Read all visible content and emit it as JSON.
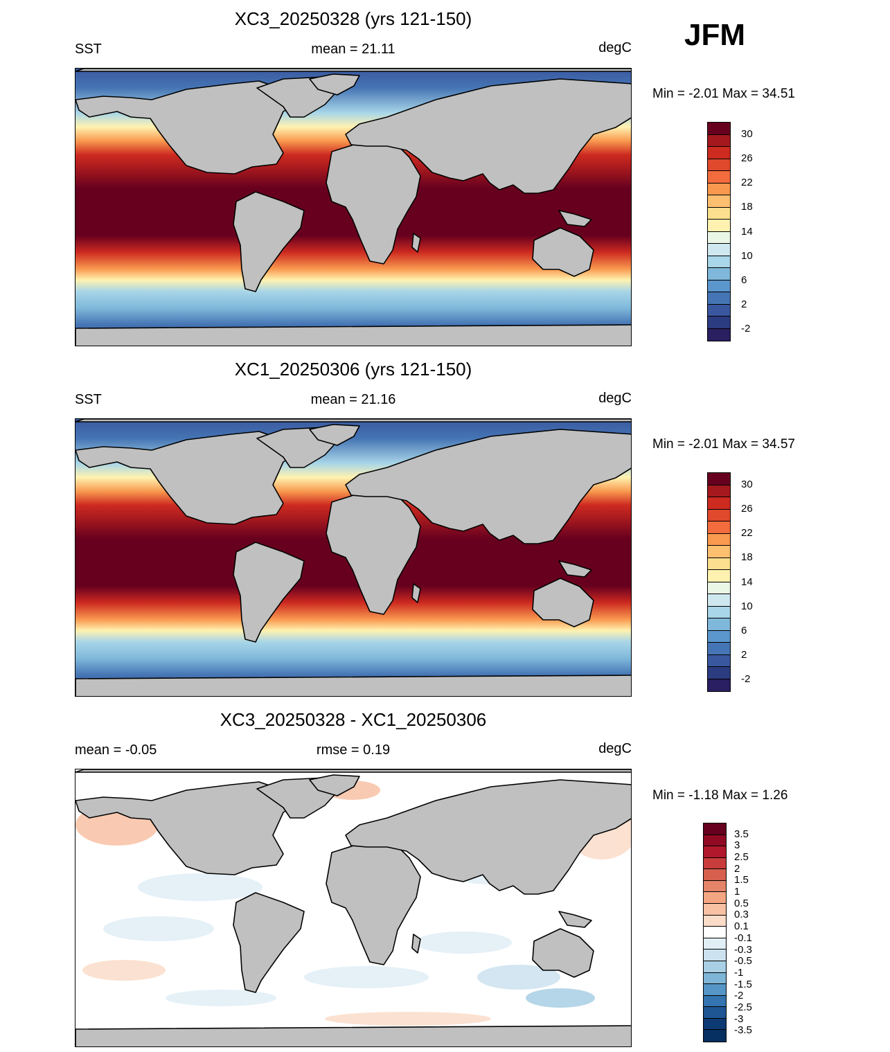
{
  "season": "JFM",
  "panels": [
    {
      "title": "XC3_20250328 (yrs 121-150)",
      "left_label": "SST",
      "center_label": "mean =  21.11",
      "units": "degC",
      "minmax": "Min =  -2.01 Max =  34.51"
    },
    {
      "title": "XC1_20250306 (yrs 121-150)",
      "left_label": "SST",
      "center_label": "mean =  21.16",
      "units": "degC",
      "minmax": "Min =  -2.01 Max =  34.57"
    },
    {
      "title": "XC3_20250328 - XC1_20250306",
      "left_label": "mean =  -0.05",
      "center_label": "rmse =   0.19",
      "units": "degC",
      "minmax": "Min =  -1.18 Max =   1.26"
    }
  ],
  "sst_colorbar": {
    "labels": [
      "30",
      "26",
      "22",
      "18",
      "14",
      "10",
      "6",
      "2",
      "-2"
    ],
    "colors": [
      "#67001f",
      "#a5191e",
      "#cd2a20",
      "#e0492c",
      "#f26c3e",
      "#f9994f",
      "#fdbf70",
      "#fde08f",
      "#fff2b0",
      "#eaf6e6",
      "#cfe8f0",
      "#a9d6e8",
      "#7fb8da",
      "#5b97cc",
      "#4575b4",
      "#3a58a0",
      "#2c3c80",
      "#2a1f60"
    ]
  },
  "diff_colorbar": {
    "labels": [
      "3.5",
      "3",
      "2.5",
      "2",
      "1.5",
      "1",
      "0.5",
      "0.3",
      "0.1",
      "-0.1",
      "-0.3",
      "-0.5",
      "-1",
      "-1.5",
      "-2",
      "-2.5",
      "-3",
      "-3.5"
    ],
    "colors": [
      "#67001f",
      "#900a24",
      "#b2182b",
      "#c93c3c",
      "#d6604d",
      "#e48468",
      "#f4a582",
      "#f8c1a4",
      "#fbdcc9",
      "#ffffff",
      "#e1eef6",
      "#cce2ef",
      "#a9cfe5",
      "#7fb6d7",
      "#5596c7",
      "#3474b0",
      "#1e5593",
      "#0e3a73",
      "#053061"
    ]
  },
  "map_colors": {
    "land": "#c0c0c0",
    "coast": "#000000"
  }
}
